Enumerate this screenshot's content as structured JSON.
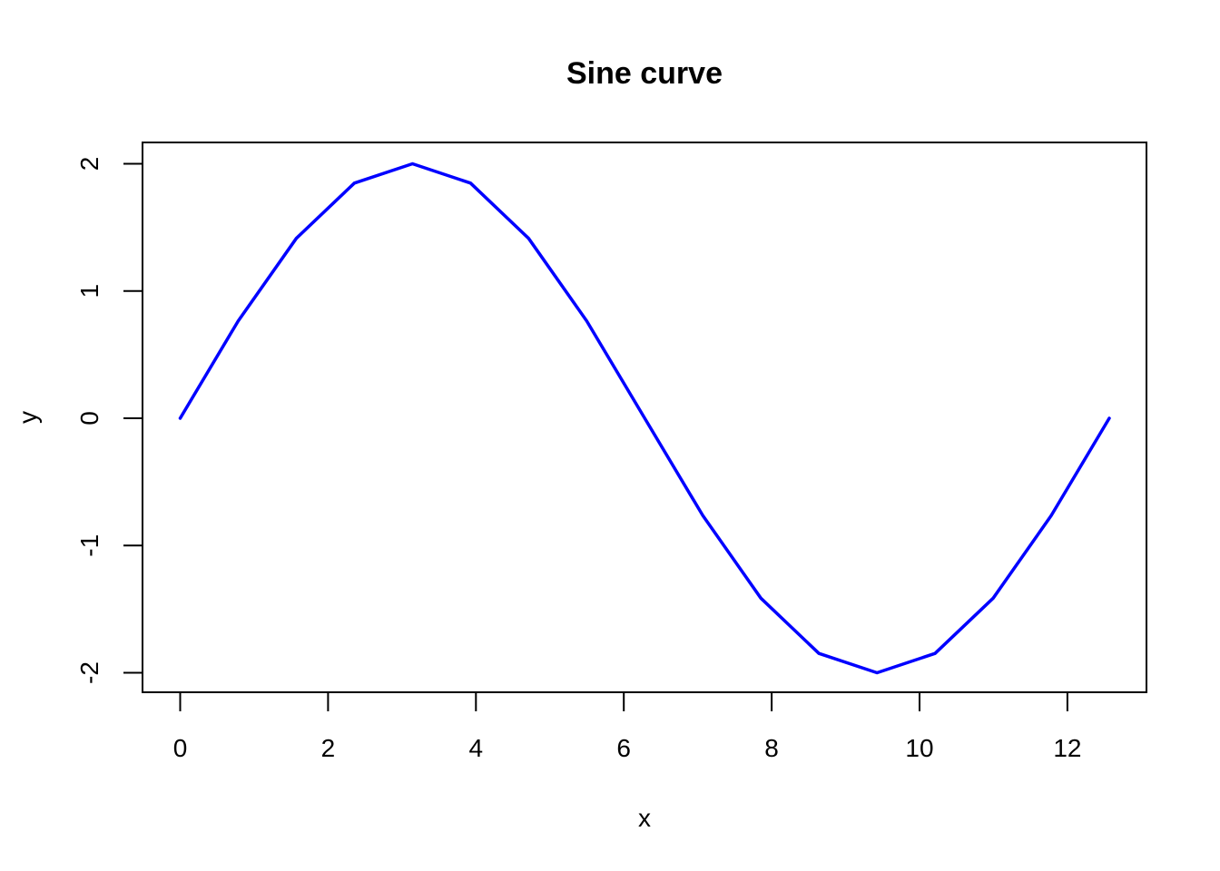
{
  "chart_data": {
    "type": "line",
    "title": "Sine curve",
    "xlabel": "x",
    "ylabel": "y",
    "xlim": [
      0,
      12.566
    ],
    "ylim": [
      -2,
      2
    ],
    "xticks": [
      0,
      2,
      4,
      6,
      8,
      10,
      12
    ],
    "yticks": [
      -2,
      -1,
      0,
      1,
      2
    ],
    "grid": false,
    "legend": "none",
    "series": [
      {
        "color": "#0000ff",
        "x": [
          0,
          0.785,
          1.571,
          2.356,
          3.142,
          3.927,
          4.712,
          5.498,
          6.283,
          7.069,
          7.854,
          8.639,
          9.425,
          10.21,
          10.996,
          11.781,
          12.566
        ],
        "y": [
          0,
          0.765,
          1.414,
          1.848,
          2.0,
          1.848,
          1.414,
          0.765,
          0,
          -0.765,
          -1.414,
          -1.848,
          -2.0,
          -1.848,
          -1.414,
          -0.765,
          0
        ]
      }
    ]
  }
}
